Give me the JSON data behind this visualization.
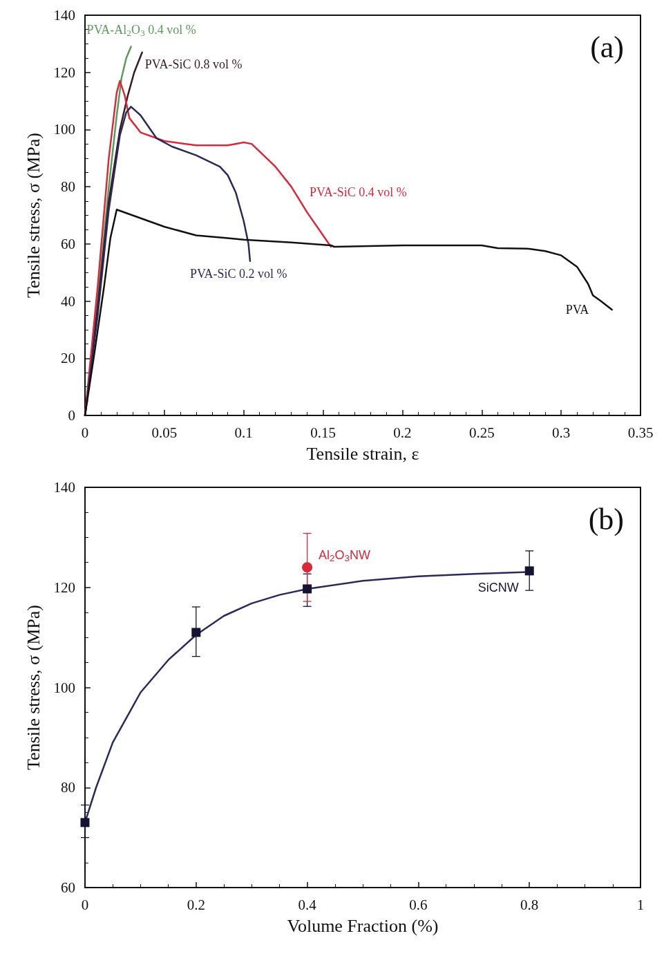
{
  "chart_data": [
    {
      "type": "line",
      "xlabel": "Tensile strain, ε",
      "ylabel": "Tensile stress, σ (MPa)",
      "annotations": [
        "(a)"
      ],
      "xlim": [
        0,
        0.35
      ],
      "xticks": [
        0,
        0.05,
        0.1,
        0.15,
        0.2,
        0.25,
        0.3,
        0.35
      ],
      "ylim": [
        0,
        140
      ],
      "yticks": [
        0,
        20,
        40,
        60,
        80,
        100,
        120,
        140
      ],
      "marker": "none",
      "line_style": "solid",
      "grid": false,
      "series": [
        {
          "name": "PVA-Al$_{2}$O$_{3}$ 0.4 vol %",
          "color": "#5a9a5a",
          "x": [
            0,
            0.008,
            0.015,
            0.02,
            0.023,
            0.026,
            0.029
          ],
          "values": [
            0,
            40,
            80,
            105,
            118,
            125,
            129
          ]
        },
        {
          "name": "PVA-SiC 0.8 vol %",
          "color": "#3a1a22",
          "x": [
            0,
            0.008,
            0.015,
            0.022,
            0.027,
            0.031,
            0.036
          ],
          "values": [
            0,
            38,
            75,
            100,
            112,
            120,
            127
          ]
        },
        {
          "name": "PVA-SiC 0.4 vol %",
          "color": "#d8283a",
          "x": [
            0,
            0.008,
            0.015,
            0.02,
            0.022,
            0.025,
            0.028,
            0.035,
            0.05,
            0.07,
            0.09,
            0.1,
            0.105,
            0.12,
            0.13,
            0.14,
            0.15,
            0.155
          ],
          "values": [
            0,
            45,
            90,
            113,
            117,
            112,
            104,
            99,
            96,
            94.5,
            94.5,
            95.5,
            95,
            87,
            80,
            71,
            63,
            59
          ]
        },
        {
          "name": "PVA-SiC 0.2 vol %",
          "color": "#2a2a5a",
          "x": [
            0,
            0.008,
            0.015,
            0.022,
            0.026,
            0.029,
            0.035,
            0.045,
            0.055,
            0.07,
            0.085,
            0.09,
            0.095,
            0.1,
            0.103,
            0.104
          ],
          "values": [
            0,
            35,
            72,
            98,
            106,
            108,
            105,
            97,
            94,
            91,
            87,
            84,
            78,
            68,
            60,
            54
          ]
        },
        {
          "name": "PVA",
          "color": "#111111",
          "x": [
            0,
            0.006,
            0.012,
            0.016,
            0.02,
            0.03,
            0.05,
            0.07,
            0.09,
            0.1,
            0.13,
            0.155,
            0.157,
            0.2,
            0.25,
            0.26,
            0.28,
            0.29,
            0.3,
            0.31,
            0.317,
            0.32,
            0.325,
            0.332
          ],
          "values": [
            0,
            22,
            45,
            62,
            72,
            70,
            66,
            63,
            62,
            61.5,
            60.5,
            59.5,
            59,
            59.5,
            59.5,
            58.5,
            58.3,
            57.5,
            56,
            52,
            46,
            42,
            40,
            37
          ]
        }
      ]
    },
    {
      "type": "scatter",
      "xlabel": "Volume Fraction (%)",
      "ylabel": "Tensile stress, σ (MPa)",
      "annotations": [
        "(b)"
      ],
      "xlim": [
        0,
        1
      ],
      "xticks": [
        0,
        0.2,
        0.4,
        0.6,
        0.8,
        1
      ],
      "ylim": [
        60,
        140
      ],
      "yticks": [
        60,
        80,
        100,
        120,
        140
      ],
      "grid": false,
      "series": [
        {
          "type": "line",
          "color": "#2a2a5a",
          "marker": "none",
          "x": [
            0,
            0.02,
            0.05,
            0.1,
            0.15,
            0.2,
            0.25,
            0.3,
            0.35,
            0.4,
            0.5,
            0.6,
            0.7,
            0.8
          ],
          "values": [
            73,
            80,
            89,
            99,
            105.5,
            110.5,
            114.3,
            116.8,
            118.5,
            119.7,
            121.3,
            122.2,
            122.7,
            123.1
          ]
        },
        {
          "name": "SiCNW",
          "color": "#141432",
          "marker": "square",
          "x": [
            0,
            0.2,
            0.4,
            0.8
          ],
          "values": [
            73,
            111,
            119.7,
            123.3
          ],
          "errors": [
            [
              70,
              76.5
            ],
            [
              106.2,
              116.1
            ],
            [
              116.2,
              122.7
            ],
            [
              119.4,
              127.3
            ]
          ]
        },
        {
          "name": "Al$_{2}$O$_{3}$NW",
          "color": "#d8283a",
          "marker": "circle",
          "x": [
            0.4
          ],
          "values": [
            124
          ],
          "errors": [
            6.8
          ]
        }
      ]
    }
  ]
}
